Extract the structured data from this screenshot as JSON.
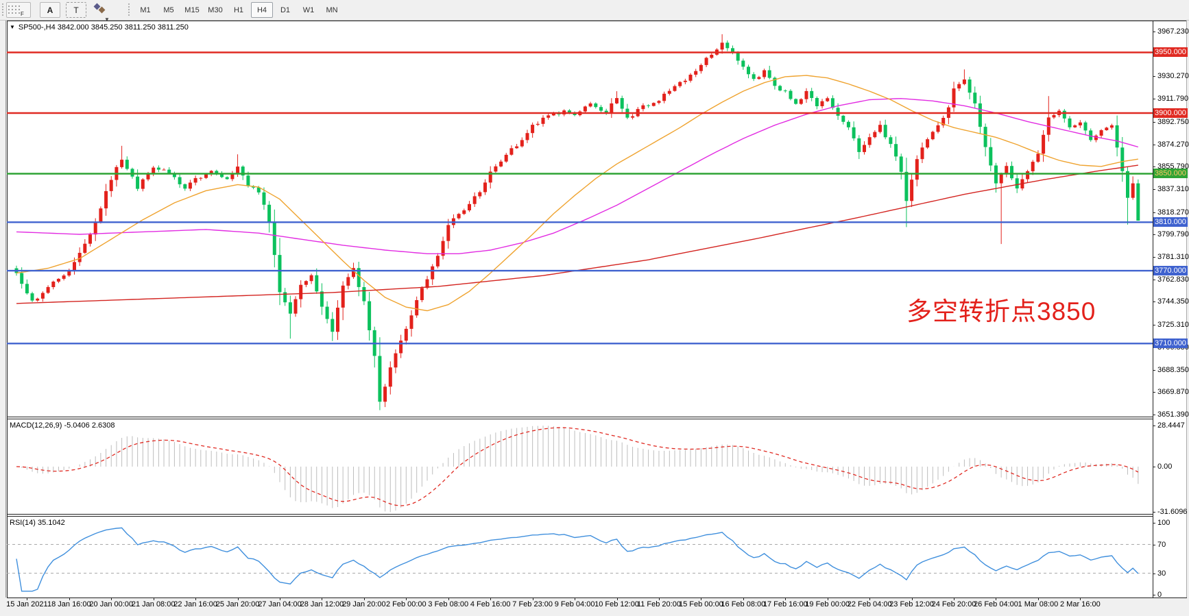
{
  "toolbar": {
    "grid_button_label": "F",
    "a_button_label": "A",
    "t_button_label": "T",
    "timeframes": [
      "M1",
      "M5",
      "M15",
      "M30",
      "H1",
      "H4",
      "D1",
      "W1",
      "MN"
    ],
    "active_timeframe": "H4"
  },
  "chart_header": {
    "symbol_title": "SP500-,H4 3842.000 3845.250 3811.250 3811.250"
  },
  "annotation": {
    "text": "多空转折点3850",
    "color": "#e3211b"
  },
  "price_axis": {
    "ticks": [
      "3967.230",
      "3930.270",
      "3911.790",
      "3892.750",
      "3874.270",
      "3855.790",
      "3837.310",
      "3818.270",
      "3799.790",
      "3781.310",
      "3762.830",
      "3744.350",
      "3725.310",
      "3706.830",
      "3688.350",
      "3669.870",
      "3651.390"
    ],
    "line_labels": [
      {
        "text": "3950.000",
        "value": 3950,
        "bg": "#e02a22",
        "fg": "#ffffff"
      },
      {
        "text": "3900.000",
        "value": 3900,
        "bg": "#e02a22",
        "fg": "#ffffff"
      },
      {
        "text": "3850.000",
        "value": 3850,
        "bg": "#2fa335",
        "fg": "#ffc966"
      },
      {
        "text": "3810.000",
        "value": 3810,
        "bg": "#3f62cf",
        "fg": "#ffffff"
      },
      {
        "text": "3770.000",
        "value": 3770,
        "bg": "#3f62cf",
        "fg": "#ffffff"
      },
      {
        "text": "3710.000",
        "value": 3710,
        "bg": "#3f62cf",
        "fg": "#ffffff"
      }
    ]
  },
  "time_axis": {
    "labels": [
      "15 Jan 2021",
      "18 Jan 16:00",
      "20 Jan 00:00",
      "21 Jan 08:00",
      "22 Jan 16:00",
      "25 Jan 20:00",
      "27 Jan 04:00",
      "28 Jan 12:00",
      "29 Jan 20:00",
      "2 Feb 00:00",
      "3 Feb 08:00",
      "4 Feb 16:00",
      "7 Feb 23:00",
      "9 Feb 04:00",
      "10 Feb 12:00",
      "11 Feb 20:00",
      "15 Feb 00:00",
      "16 Feb 08:00",
      "17 Feb 16:00",
      "19 Feb 00:00",
      "22 Feb 04:00",
      "23 Feb 12:00",
      "24 Feb 20:00",
      "26 Feb 04:00",
      "1 Mar 08:00",
      "2 Mar 16:00"
    ]
  },
  "macd_pane": {
    "label": "MACD(12,26,9) -5.0406 2.6308",
    "axis_labels": [
      "28.4447",
      "0.00",
      "-31.6096"
    ]
  },
  "rsi_pane": {
    "label": "RSI(14) 35.1042",
    "axis_labels": [
      "100",
      "70",
      "30",
      "0"
    ]
  },
  "chart_data": {
    "type": "candlestick",
    "symbol": "SP500-",
    "timeframe": "H4",
    "title": "SP500-,H4 3842.000 3845.250 3811.250 3811.250",
    "current_bar": {
      "open": 3842.0,
      "high": 3845.25,
      "low": 3811.25,
      "close": 3811.25
    },
    "bars_total": 214,
    "x_range": [
      "15 Jan 2021",
      "2 Mar 2021"
    ],
    "y_range": [
      3651.39,
      3976.3
    ],
    "grid": false,
    "color_convention": "red = bullish candle, green = bearish candle (CN convention)",
    "up_color": "#e3211b",
    "down_color": "#0cc15d",
    "horizontal_lines": [
      {
        "value": 3950,
        "color": "#e02a22"
      },
      {
        "value": 3900,
        "color": "#e02a22"
      },
      {
        "value": 3850,
        "color": "#2fa335"
      },
      {
        "value": 3810,
        "color": "#3f62cf"
      },
      {
        "value": 3770,
        "color": "#3f62cf"
      },
      {
        "value": 3710,
        "color": "#3f62cf"
      }
    ],
    "close_waypoints": [
      [
        0,
        3768
      ],
      [
        3,
        3745
      ],
      [
        6,
        3757
      ],
      [
        10,
        3770
      ],
      [
        14,
        3800
      ],
      [
        18,
        3845
      ],
      [
        20,
        3862
      ],
      [
        23,
        3838
      ],
      [
        26,
        3855
      ],
      [
        29,
        3850
      ],
      [
        32,
        3838
      ],
      [
        34,
        3846
      ],
      [
        37,
        3852
      ],
      [
        40,
        3846
      ],
      [
        42,
        3856
      ],
      [
        44,
        3840
      ],
      [
        46,
        3835
      ],
      [
        48,
        3810
      ],
      [
        50,
        3752
      ],
      [
        52,
        3735
      ],
      [
        54,
        3758
      ],
      [
        56,
        3766
      ],
      [
        58,
        3740
      ],
      [
        60,
        3720
      ],
      [
        62,
        3758
      ],
      [
        64,
        3772
      ],
      [
        66,
        3745
      ],
      [
        68,
        3700
      ],
      [
        69,
        3662
      ],
      [
        71,
        3690
      ],
      [
        74,
        3722
      ],
      [
        77,
        3756
      ],
      [
        80,
        3782
      ],
      [
        82,
        3808
      ],
      [
        85,
        3820
      ],
      [
        88,
        3835
      ],
      [
        90,
        3852
      ],
      [
        93,
        3866
      ],
      [
        96,
        3878
      ],
      [
        98,
        3890
      ],
      [
        101,
        3898
      ],
      [
        104,
        3902
      ],
      [
        106,
        3898
      ],
      [
        109,
        3908
      ],
      [
        112,
        3900
      ],
      [
        114,
        3912
      ],
      [
        116,
        3896
      ],
      [
        119,
        3906
      ],
      [
        122,
        3910
      ],
      [
        125,
        3922
      ],
      [
        128,
        3932
      ],
      [
        130,
        3940
      ],
      [
        132,
        3948
      ],
      [
        134,
        3958
      ],
      [
        136,
        3950
      ],
      [
        138,
        3938
      ],
      [
        140,
        3928
      ],
      [
        142,
        3935
      ],
      [
        144,
        3922
      ],
      [
        146,
        3918
      ],
      [
        148,
        3908
      ],
      [
        150,
        3918
      ],
      [
        152,
        3906
      ],
      [
        154,
        3912
      ],
      [
        156,
        3898
      ],
      [
        158,
        3888
      ],
      [
        160,
        3868
      ],
      [
        162,
        3880
      ],
      [
        164,
        3890
      ],
      [
        166,
        3874
      ],
      [
        168,
        3852
      ],
      [
        169,
        3828
      ],
      [
        171,
        3862
      ],
      [
        173,
        3878
      ],
      [
        175,
        3890
      ],
      [
        177,
        3905
      ],
      [
        178,
        3920
      ],
      [
        180,
        3928
      ],
      [
        182,
        3908
      ],
      [
        184,
        3872
      ],
      [
        186,
        3842
      ],
      [
        188,
        3856
      ],
      [
        190,
        3838
      ],
      [
        192,
        3852
      ],
      [
        194,
        3866
      ],
      [
        196,
        3896
      ],
      [
        198,
        3902
      ],
      [
        200,
        3888
      ],
      [
        202,
        3892
      ],
      [
        204,
        3878
      ],
      [
        206,
        3886
      ],
      [
        208,
        3890
      ],
      [
        210,
        3852
      ],
      [
        211,
        3830
      ],
      [
        212,
        3842
      ],
      [
        213,
        3811.25
      ]
    ],
    "wick_overrides": [
      {
        "bar": 20,
        "high": 3873
      },
      {
        "bar": 42,
        "high": 3866
      },
      {
        "bar": 52,
        "low": 3714
      },
      {
        "bar": 60,
        "low": 3712
      },
      {
        "bar": 69,
        "low": 3655
      },
      {
        "bar": 114,
        "high": 3918
      },
      {
        "bar": 134,
        "high": 3965
      },
      {
        "bar": 169,
        "low": 3806
      },
      {
        "bar": 180,
        "high": 3936
      },
      {
        "bar": 187,
        "low": 3792
      },
      {
        "bar": 196,
        "high": 3914
      },
      {
        "bar": 211,
        "low": 3808
      },
      {
        "bar": 213,
        "high": 3845.25,
        "low": 3811.25
      }
    ],
    "moving_averages": [
      {
        "name": "ma-slow-magenta",
        "color": "#e22ce2",
        "points": [
          [
            0,
            3802
          ],
          [
            12,
            3800
          ],
          [
            24,
            3802
          ],
          [
            36,
            3804
          ],
          [
            46,
            3801
          ],
          [
            54,
            3796
          ],
          [
            62,
            3791
          ],
          [
            70,
            3787
          ],
          [
            78,
            3784
          ],
          [
            84,
            3784
          ],
          [
            90,
            3787
          ],
          [
            96,
            3793
          ],
          [
            102,
            3801
          ],
          [
            108,
            3812
          ],
          [
            114,
            3824
          ],
          [
            120,
            3838
          ],
          [
            126,
            3852
          ],
          [
            132,
            3866
          ],
          [
            138,
            3879
          ],
          [
            144,
            3890
          ],
          [
            150,
            3899
          ],
          [
            156,
            3906
          ],
          [
            162,
            3911
          ],
          [
            168,
            3912
          ],
          [
            174,
            3910
          ],
          [
            180,
            3906
          ],
          [
            186,
            3900
          ],
          [
            192,
            3893
          ],
          [
            198,
            3887
          ],
          [
            204,
            3881
          ],
          [
            209,
            3877
          ],
          [
            213,
            3872
          ]
        ]
      },
      {
        "name": "ma-mid-orange",
        "color": "#efa32f",
        "points": [
          [
            0,
            3768
          ],
          [
            6,
            3772
          ],
          [
            12,
            3780
          ],
          [
            18,
            3796
          ],
          [
            24,
            3812
          ],
          [
            30,
            3826
          ],
          [
            36,
            3836
          ],
          [
            42,
            3841
          ],
          [
            46,
            3839
          ],
          [
            50,
            3829
          ],
          [
            54,
            3812
          ],
          [
            58,
            3795
          ],
          [
            62,
            3778
          ],
          [
            66,
            3762
          ],
          [
            70,
            3748
          ],
          [
            74,
            3740
          ],
          [
            78,
            3737
          ],
          [
            82,
            3742
          ],
          [
            86,
            3753
          ],
          [
            90,
            3768
          ],
          [
            94,
            3784
          ],
          [
            98,
            3800
          ],
          [
            102,
            3817
          ],
          [
            106,
            3832
          ],
          [
            110,
            3846
          ],
          [
            114,
            3858
          ],
          [
            118,
            3868
          ],
          [
            122,
            3878
          ],
          [
            126,
            3888
          ],
          [
            130,
            3899
          ],
          [
            134,
            3909
          ],
          [
            138,
            3918
          ],
          [
            142,
            3925
          ],
          [
            146,
            3930
          ],
          [
            150,
            3931
          ],
          [
            154,
            3929
          ],
          [
            158,
            3924
          ],
          [
            162,
            3918
          ],
          [
            166,
            3911
          ],
          [
            170,
            3902
          ],
          [
            174,
            3894
          ],
          [
            178,
            3888
          ],
          [
            182,
            3884
          ],
          [
            186,
            3880
          ],
          [
            190,
            3874
          ],
          [
            194,
            3867
          ],
          [
            198,
            3861
          ],
          [
            202,
            3857
          ],
          [
            206,
            3856
          ],
          [
            210,
            3860
          ],
          [
            213,
            3862
          ]
        ]
      },
      {
        "name": "ma-long-red",
        "color": "#d3231f",
        "points": [
          [
            0,
            3743
          ],
          [
            20,
            3746
          ],
          [
            40,
            3749
          ],
          [
            60,
            3752
          ],
          [
            80,
            3757
          ],
          [
            100,
            3766
          ],
          [
            120,
            3779
          ],
          [
            140,
            3796
          ],
          [
            160,
            3814
          ],
          [
            180,
            3833
          ],
          [
            195,
            3845
          ],
          [
            205,
            3852
          ],
          [
            213,
            3857
          ]
        ]
      }
    ],
    "indicators": {
      "macd": {
        "params": [
          12,
          26,
          9
        ],
        "current_main": -5.0406,
        "current_signal": 2.6308,
        "histogram_color": "#bdbdbd",
        "signal_color": "#e02a22",
        "axis_range": [
          -31.6096,
          28.4447
        ]
      },
      "rsi": {
        "period": 14,
        "current": 35.1042,
        "color": "#3f8fdd",
        "levels": [
          70,
          30
        ],
        "axis_range": [
          0,
          100
        ]
      }
    }
  }
}
